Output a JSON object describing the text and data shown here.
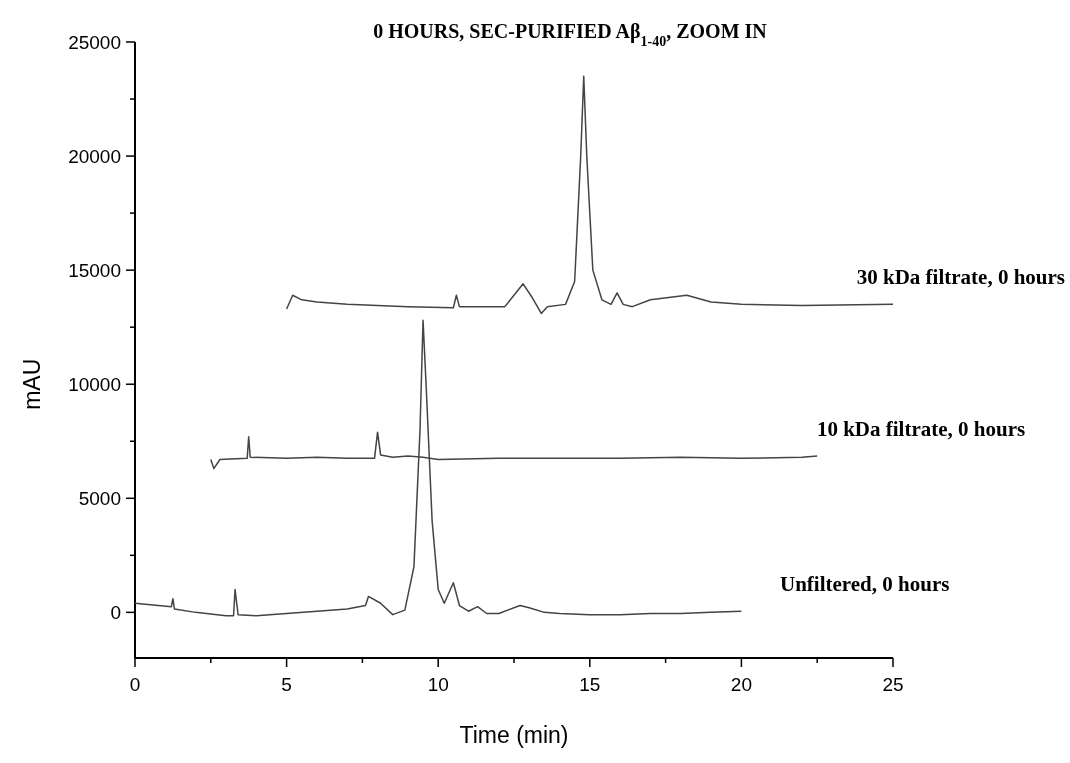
{
  "chart_data": {
    "type": "line",
    "title": "0 HOURS, SEC-PURIFIED Aβ$_{1-40}$, ZOOM IN",
    "xlabel": "Time (min)",
    "ylabel": "mAU",
    "xlim": [
      0,
      25
    ],
    "xticks": [
      0,
      {
        "value": 2.5,
        "label": null
      },
      5,
      {
        "value": 7.5,
        "label": null
      },
      10,
      {
        "value": 12.5,
        "label": null
      },
      15,
      {
        "value": 17.5,
        "label": null
      },
      20,
      {
        "value": 22.5,
        "label": null
      },
      25
    ],
    "ylim": [
      -2000,
      25000
    ],
    "yticks": [
      0,
      {
        "value": 2500,
        "label": null
      },
      5000,
      {
        "value": 7500,
        "label": null
      },
      10000,
      {
        "value": 12500,
        "label": null
      },
      15000,
      {
        "value": 17500,
        "label": null
      },
      20000,
      {
        "value": 22500,
        "label": null
      },
      25000
    ],
    "grid": false,
    "legend": false,
    "line_style": "solid",
    "marker": "none",
    "series": [
      {
        "name": "Unfiltered, 0 hours",
        "color": "#444444",
        "x": [
          0,
          1.2,
          1.25,
          1.3,
          2,
          3,
          3.25,
          3.3,
          3.4,
          4,
          5,
          6,
          7,
          7.6,
          7.7,
          8.1,
          8.5,
          8.9,
          9.2,
          9.4,
          9.5,
          9.6,
          9.8,
          10,
          10.2,
          10.5,
          10.7,
          11,
          11.3,
          11.6,
          12,
          12.7,
          13,
          13.5,
          14,
          15,
          16,
          17,
          18,
          19,
          20
        ],
        "values": [
          400,
          250,
          600,
          150,
          0,
          -150,
          -150,
          1000,
          -100,
          -150,
          -50,
          50,
          150,
          300,
          700,
          400,
          -100,
          100,
          2000,
          8000,
          12800,
          10000,
          4000,
          1000,
          400,
          1300,
          300,
          50,
          250,
          -50,
          -50,
          300,
          200,
          0,
          -50,
          -100,
          -100,
          -50,
          -50,
          0,
          50
        ]
      },
      {
        "name": "10 kDa filtrate, 0 hours",
        "color": "#444444",
        "x": [
          2.5,
          2.6,
          2.8,
          3.7,
          3.75,
          3.8,
          5,
          6,
          7,
          7.9,
          8,
          8.1,
          8.5,
          9,
          9.5,
          10,
          12,
          14,
          16,
          18,
          20,
          22,
          22.5
        ],
        "values": [
          6700,
          6300,
          6700,
          6750,
          7700,
          6800,
          6750,
          6800,
          6750,
          6750,
          7900,
          6900,
          6800,
          6850,
          6800,
          6700,
          6750,
          6750,
          6750,
          6800,
          6750,
          6800,
          6850
        ]
      },
      {
        "name": "30 kDa filtrate, 0 hours",
        "color": "#444444",
        "x": [
          5,
          5.2,
          5.5,
          6,
          7,
          8,
          9,
          10.5,
          10.6,
          10.7,
          11,
          12,
          12.2,
          12.8,
          13.1,
          13.4,
          13.6,
          14.2,
          14.5,
          14.7,
          14.8,
          14.9,
          15.1,
          15.4,
          15.7,
          15.9,
          16.1,
          16.4,
          17,
          18.2,
          19,
          20,
          22,
          25
        ],
        "values": [
          13300,
          13900,
          13700,
          13600,
          13500,
          13450,
          13400,
          13350,
          13900,
          13400,
          13400,
          13400,
          13400,
          14400,
          13800,
          13100,
          13400,
          13500,
          14500,
          20000,
          23500,
          20000,
          15000,
          13700,
          13500,
          14000,
          13500,
          13400,
          13700,
          13900,
          13600,
          13500,
          13450,
          13500
        ]
      }
    ]
  }
}
